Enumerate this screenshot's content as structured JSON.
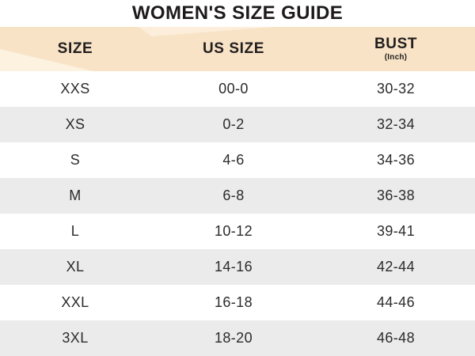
{
  "title": "WOMEN'S SIZE GUIDE",
  "chart_data": {
    "type": "table",
    "title": "WOMEN'S SIZE GUIDE",
    "columns": [
      {
        "label": "SIZE",
        "sublabel": ""
      },
      {
        "label": "US SIZE",
        "sublabel": ""
      },
      {
        "label": "BUST",
        "sublabel": "(Inch)"
      }
    ],
    "rows": [
      [
        "XXS",
        "00-0",
        "30-32"
      ],
      [
        "XS",
        "0-2",
        "32-34"
      ],
      [
        "S",
        "4-6",
        "34-36"
      ],
      [
        "M",
        "6-8",
        "36-38"
      ],
      [
        "L",
        "10-12",
        "39-41"
      ],
      [
        "XL",
        "14-16",
        "42-44"
      ],
      [
        "XXL",
        "16-18",
        "44-46"
      ],
      [
        "3XL",
        "18-20",
        "46-48"
      ]
    ],
    "layout": {
      "striped_rows": true,
      "grid": false,
      "header_position": "top"
    }
  },
  "colors": {
    "header_bg": "#f8e3c6",
    "header_sheen": "#fdf2e2",
    "row_bg": "#ffffff",
    "row_alt_bg": "#ebebeb",
    "text": "#2b2b2b",
    "title_text": "#1e1a1b"
  }
}
